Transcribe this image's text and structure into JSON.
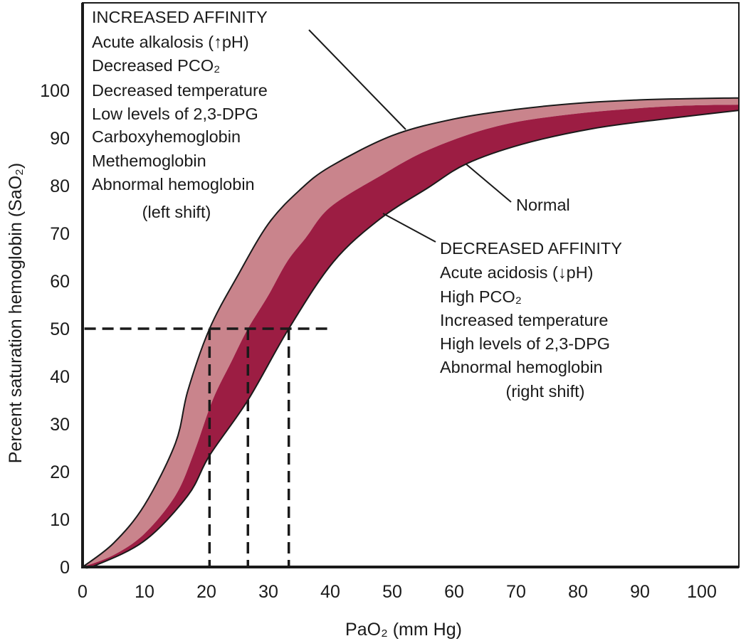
{
  "chart_data": {
    "type": "area",
    "xlabel": "PaO₂ (mm Hg)",
    "ylabel": "Percent saturation hemoglobin (SaO₂)",
    "xlim": [
      0,
      106
    ],
    "ylim": [
      0,
      100
    ],
    "xticks": [
      0,
      10,
      20,
      30,
      40,
      50,
      60,
      70,
      80,
      90,
      100
    ],
    "yticks": [
      0,
      10,
      20,
      30,
      40,
      50,
      60,
      70,
      80,
      90,
      100
    ],
    "grid": false,
    "colors": {
      "left_band": "#c9848c",
      "right_band": "#9c1d43",
      "outline": "#1a1a1a"
    },
    "series": [
      {
        "role": "left shift boundary",
        "x": [
          0,
          5,
          10,
          15,
          17,
          20.5,
          25,
          30,
          35,
          40,
          50,
          60,
          70,
          80,
          90,
          100,
          106
        ],
        "y": [
          0,
          5,
          13,
          26,
          37,
          50,
          61,
          72,
          79,
          84,
          90.5,
          94,
          96,
          97.3,
          98,
          98.3,
          98.4
        ]
      },
      {
        "name": "Normal",
        "x": [
          0,
          5,
          10,
          15,
          18,
          21,
          24,
          26.7,
          30,
          33,
          36,
          40,
          48,
          56,
          67,
          79,
          94,
          106
        ],
        "y": [
          0,
          2.5,
          7,
          15,
          24,
          35,
          43,
          50,
          57,
          64,
          69,
          75.5,
          82,
          87.6,
          92.5,
          95,
          96.6,
          97
        ]
      },
      {
        "role": "right shift boundary",
        "x": [
          0,
          2,
          10,
          17,
          20.5,
          26.7,
          33.3,
          40.5,
          48,
          55.7,
          62,
          71,
          82.5,
          94,
          106
        ],
        "y": [
          0,
          0.3,
          5.5,
          15,
          23.4,
          35,
          50,
          64,
          73,
          79.5,
          84.6,
          88.7,
          92,
          94,
          95.8
        ]
      }
    ],
    "p50_reference": {
      "y": 50,
      "x_values": [
        20.5,
        26.7,
        33.3
      ]
    },
    "annotations": {
      "increased": {
        "title": "INCREASED AFFINITY",
        "items": [
          "Acute alkalosis (↑pH)",
          "Decreased PCO₂",
          "Decreased temperature",
          "Low levels of 2,3-DPG",
          "Carboxyhemoglobin",
          "Methemoglobin",
          "Abnormal hemoglobin"
        ],
        "note": "(left shift)"
      },
      "normal": "Normal",
      "decreased": {
        "title": "DECREASED AFFINITY",
        "items": [
          "Acute acidosis (↓pH)",
          "High PCO₂",
          "Increased temperature",
          "High levels of 2,3-DPG",
          "Abnormal hemoglobin"
        ],
        "note": "(right shift)"
      }
    }
  }
}
